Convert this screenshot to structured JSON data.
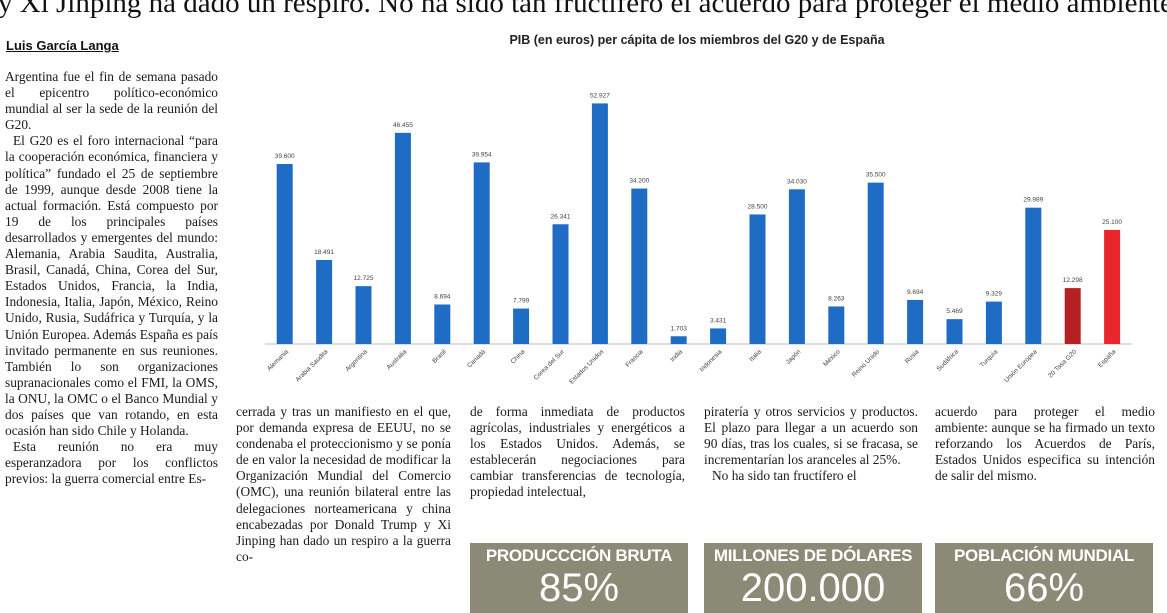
{
  "headline": "y Xi Jinping ha dado un respiro. No ha sido tan fructífero el acuerdo para proteger el medio ambiente",
  "byline": "Luis García Langa",
  "columns": {
    "col1": [
      "Argentina fue el fin de semana pasado el epicentro político-económico mundial al ser la sede de la reunión del G20.",
      "El G20 es el foro internacional “para la cooperación económica, financiera y política” fundado el 25 de septiembre de 1999, aunque desde 2008 tiene la actual formación. Está compuesto por 19 de los principales países desarrollados y emergentes del mundo: Alemania, Arabia Saudita, Australia, Brasil, Canadá, China, Corea del Sur, Estados Unidos, Francia, la India, Indonesia, Italia, Japón, México, Reino Unido, Rusia, Sudáfrica y Turquía, y la Unión Europea. Además España es país invitado permanente en sus reuniones. También lo son organizaciones supranacionales como el FMI, la OMS, la ONU, la OMC o el Banco Mundial y dos países que van rotando, en esta ocasión han sido Chile y Holanda.",
      "Esta reunión no era muy esperanzadora por los conflictos previos: la guerra comercial entre Es-"
    ],
    "col2": [
      "cerrada y tras un manifiesto en el que, por demanda expresa de EEUU, no se condenaba el proteccionismo y se ponía de en valor la necesidad de modificar la Organización Mundial del Comercio (OMC), una reunión bilateral entre las delegaciones norteamericana y china encabezadas por Donald Trump y Xi Jinping han dado un respiro a la guerra co-"
    ],
    "col3": [
      "de forma inmediata de productos agrícolas, industriales y energéticos a los Estados Unidos. Además, se establecerán negociaciones para cambiar transferencias de tecnología, propiedad intelectual,"
    ],
    "col4": [
      "piratería y otros servicios y productos. El plazo para llegar a un acuerdo son 90 días, tras los cuales, si se fracasa, se incrementarían los aranceles al 25%.",
      "No ha sido tan fructífero el"
    ],
    "col5": [
      "acuerdo para proteger el medio ambiente: aunque se ha firmado un texto reforzando los Acuerdos de París, Estados Unidos especifica su intención de salir del mismo."
    ]
  },
  "stats": [
    {
      "label": "PRODUCCCIÓN BRUTA",
      "value": "85%"
    },
    {
      "label": "MILLONES DE DÓLARES",
      "value": "200.000"
    },
    {
      "label": "POBLACIÓN MUNDIAL",
      "value": "66%"
    }
  ],
  "colors": {
    "bar": "#1f6cc4",
    "bar_dark_red": "#b52023",
    "bar_red": "#e8262b",
    "stat_bg": "#8b8a77"
  },
  "chart_data": {
    "type": "bar",
    "title": "PIB (en euros) per cápita de los miembros del G20 y de España",
    "categories": [
      "Alemania",
      "Arabia Saudita",
      "Argentina",
      "Australia",
      "Brasil",
      "Canadá",
      "China",
      "Corea del Sur",
      "Estados Unidos",
      "Francia",
      "India",
      "Indonesia",
      "Italia",
      "Japón",
      "México",
      "Reino Unido",
      "Rusia",
      "Sudáfrica",
      "Turquía",
      "Unión Europea",
      "20 Tasa G20",
      "España"
    ],
    "values": [
      39600,
      18491,
      12725,
      46455,
      8694,
      39954,
      7799,
      26341,
      52927,
      34200,
      1703,
      3431,
      28500,
      34030,
      8263,
      35500,
      9694,
      5469,
      9329,
      29989,
      12298,
      25100
    ],
    "value_labels": [
      "39.600",
      "18.491",
      "12.725",
      "46.455",
      "8.694",
      "39.954",
      "7.799",
      "26.341",
      "52.927",
      "34.200",
      "1.703",
      "3.431",
      "28.500",
      "34.030",
      "8.263",
      "35.500",
      "9.694",
      "5.469",
      "9.329",
      "29.989",
      "12.298",
      "25.100"
    ],
    "bar_colors": [
      "blue",
      "blue",
      "blue",
      "blue",
      "blue",
      "blue",
      "blue",
      "blue",
      "blue",
      "blue",
      "blue",
      "blue",
      "blue",
      "blue",
      "blue",
      "blue",
      "blue",
      "blue",
      "blue",
      "blue",
      "dark_red",
      "red"
    ],
    "xlabel": "",
    "ylabel": "",
    "ylim": [
      0,
      55000
    ]
  }
}
